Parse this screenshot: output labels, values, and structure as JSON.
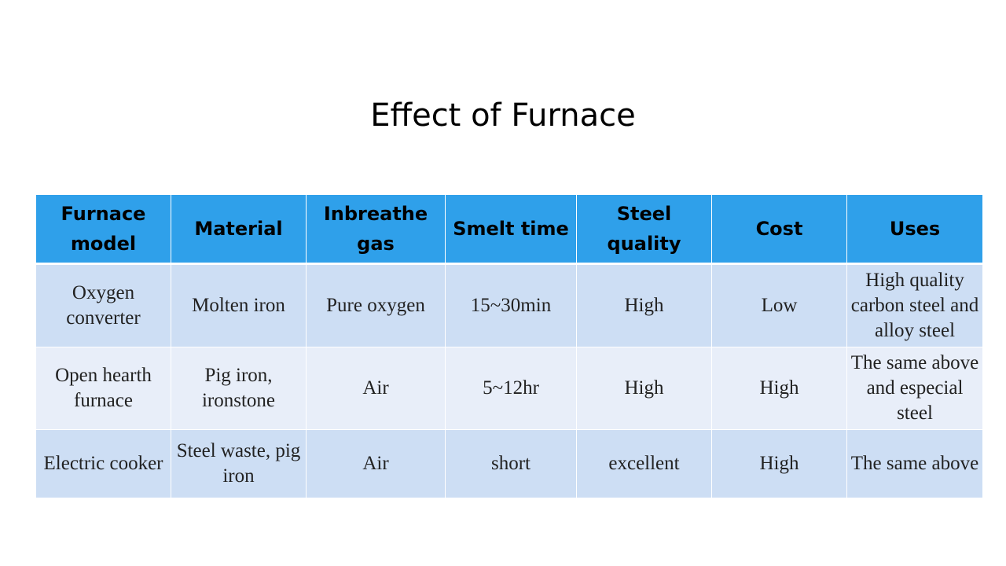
{
  "slide": {
    "title": "Effect of Furnace"
  },
  "table": {
    "headers": [
      "Furnace model",
      "Material",
      "Inbreathe gas",
      "Smelt time",
      "Steel quality",
      "Cost",
      "Uses"
    ],
    "rows": [
      [
        "Oxygen converter",
        "Molten iron",
        "Pure oxygen",
        "15~30min",
        "High",
        "Low",
        "High quality carbon steel and alloy steel"
      ],
      [
        "Open hearth furnace",
        "Pig iron, ironstone",
        "Air",
        "5~12hr",
        "High",
        "High",
        "The same above and especial steel"
      ],
      [
        "Electric cooker",
        "Steel waste, pig iron",
        "Air",
        "short",
        "excellent",
        "High",
        "The same above"
      ]
    ]
  },
  "colors": {
    "header_bg": "#2fa0ea",
    "row_odd_bg": "#cddef4",
    "row_even_bg": "#e8eef9"
  }
}
